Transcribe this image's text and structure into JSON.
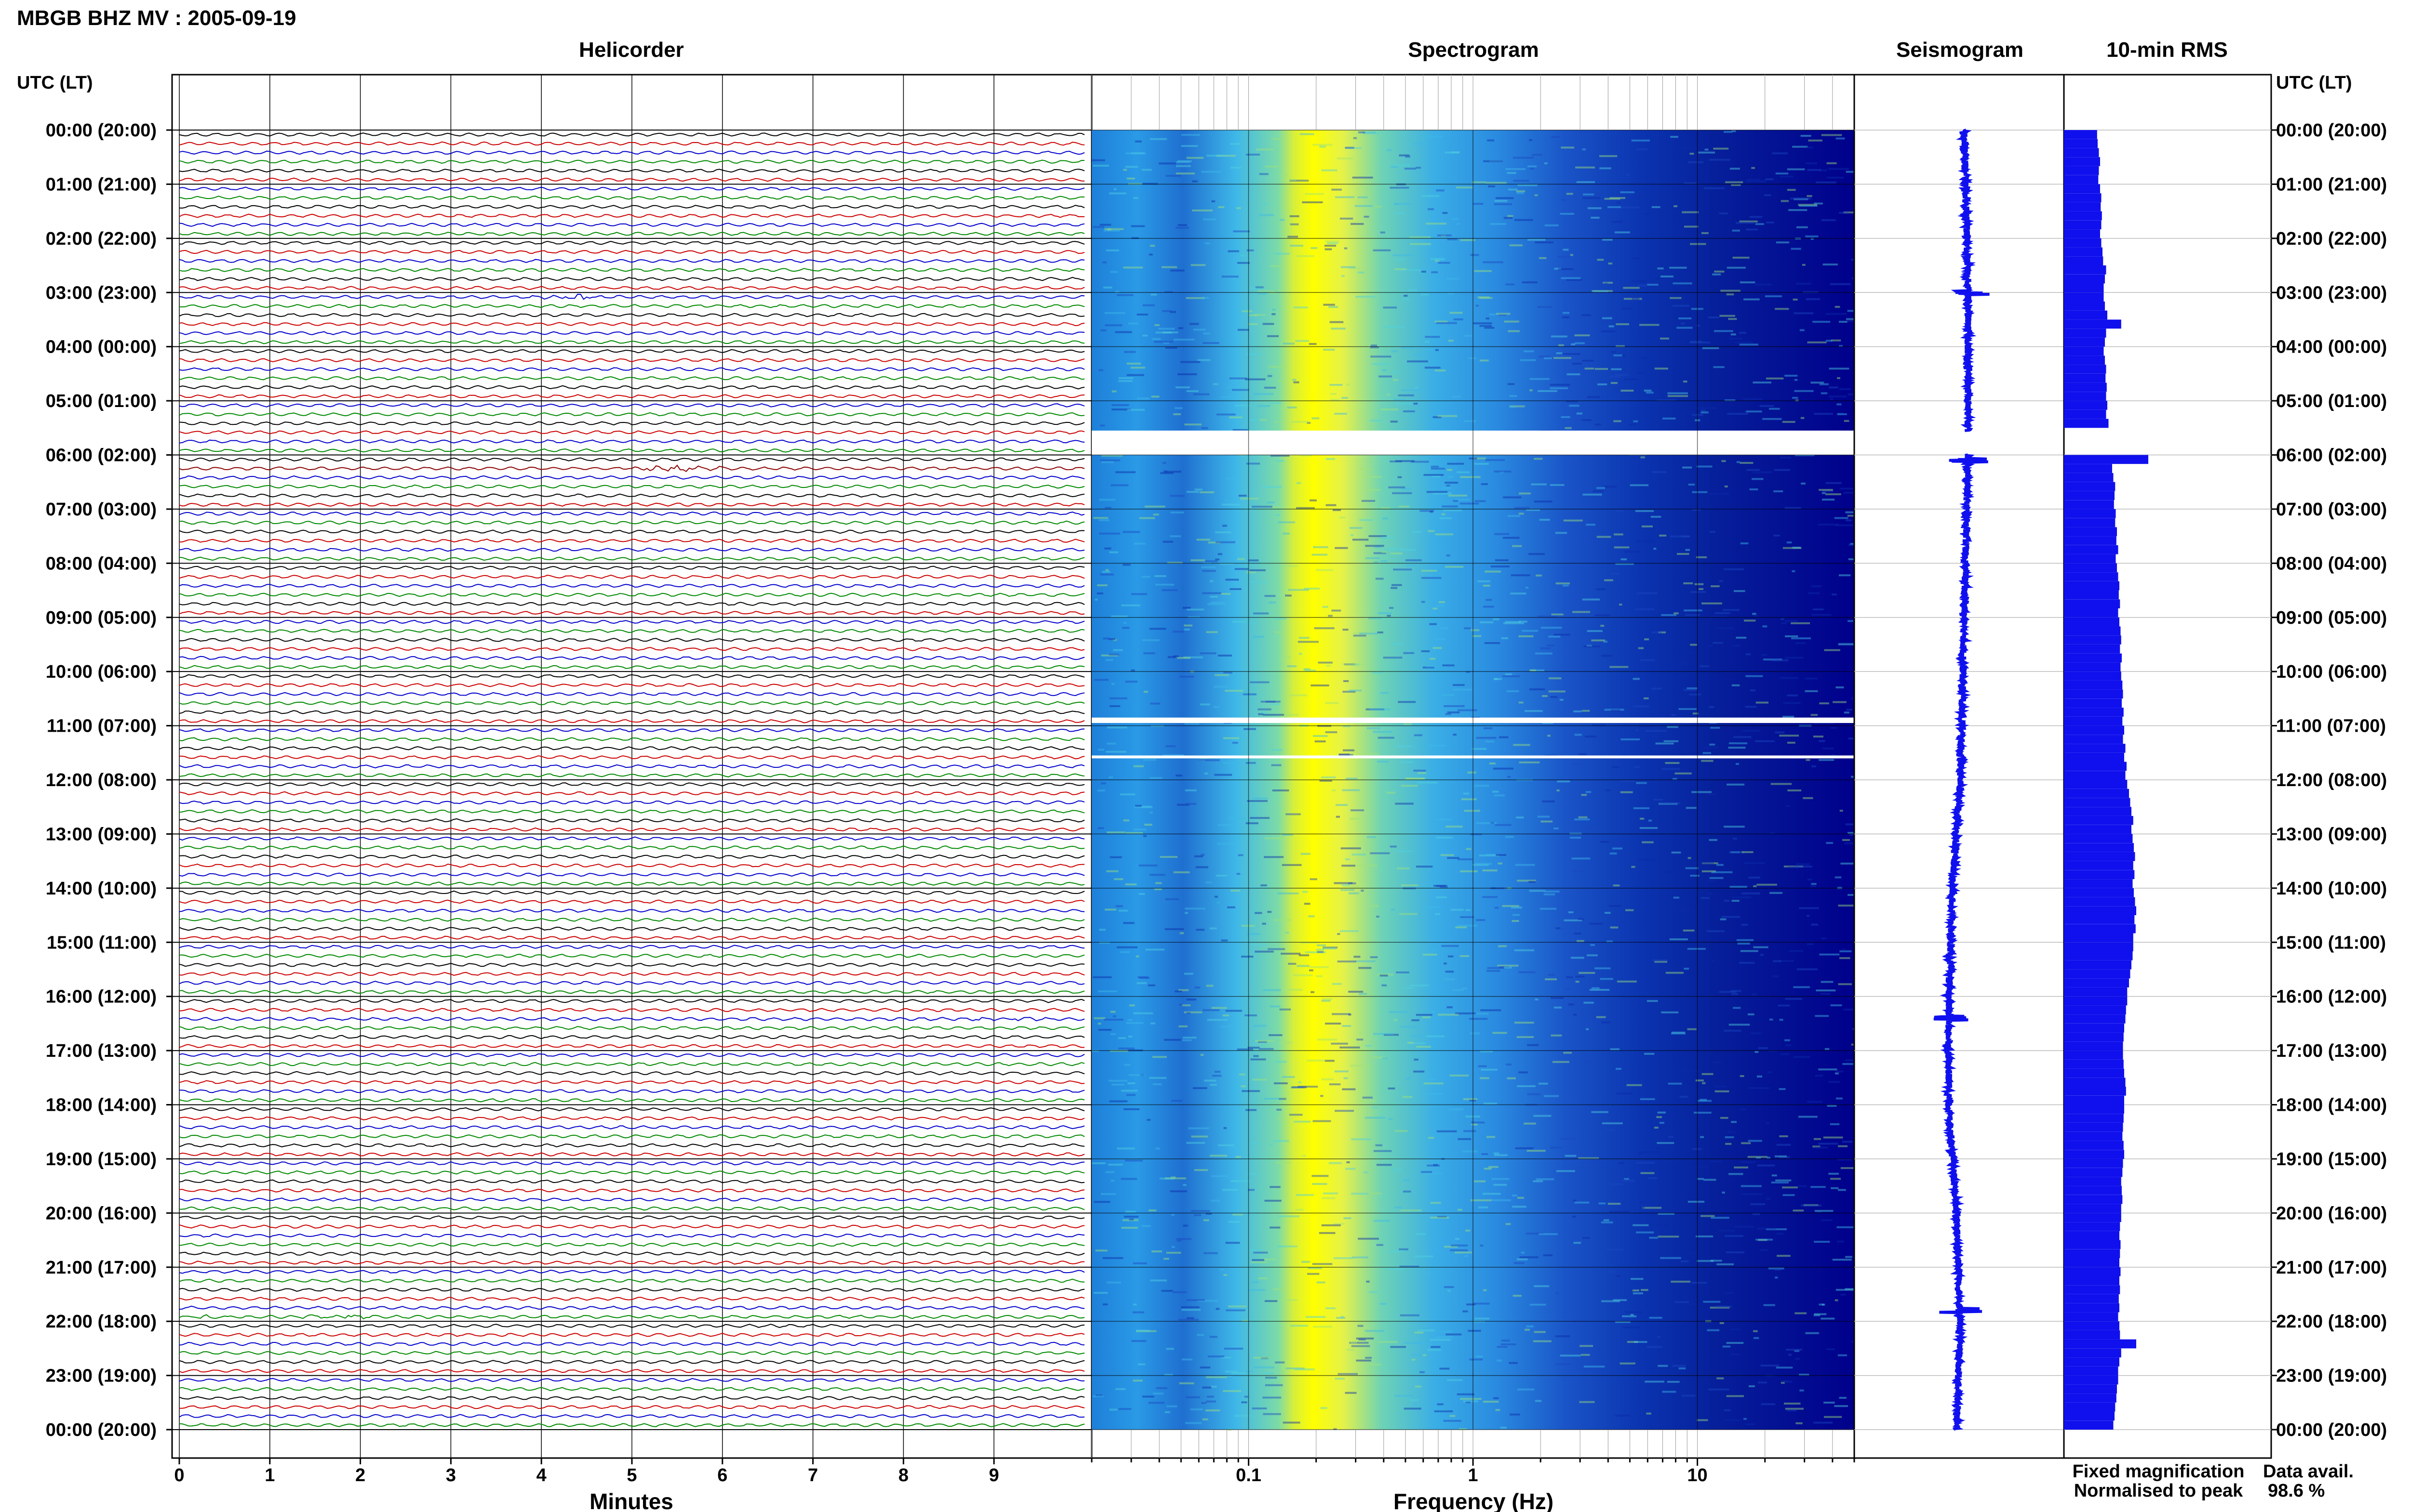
{
  "header": {
    "title": "MBGB BHZ MV : 2005-09-19"
  },
  "panels": {
    "helicorder": "Helicorder",
    "spectrogram": "Spectrogram",
    "seismogram": "Seismogram",
    "rms": "10-min RMS"
  },
  "axis": {
    "time_header_left": "UTC (LT)",
    "time_header_right": "UTC (LT)",
    "minutes_label": "Minutes",
    "frequency_label": "Frequency (Hz)"
  },
  "legend": {
    "fixed": "Fixed magnification",
    "normalised": "Normalised to peak",
    "fixed_color": "#1010ee",
    "normalised_color": "#ee1010"
  },
  "data_availability": {
    "label": "Data avail.",
    "value": "98.6 %"
  },
  "colors": {
    "trace_cycle": [
      "#000000",
      "#cc0000",
      "#0000cc",
      "#008800"
    ],
    "spectrogram_low": "#00008b",
    "spectrogram_high": "#ffff00",
    "rms_bar": "#1010ee"
  },
  "chart_data": [
    {
      "type": "line",
      "title": "Helicorder",
      "xlabel": "Minutes",
      "x_ticks": [
        "0",
        "1",
        "2",
        "3",
        "4",
        "5",
        "6",
        "7",
        "8",
        "9"
      ],
      "xlim": [
        0,
        10
      ],
      "y_ticks": [
        "00:00 (20:00)",
        "01:00 (21:00)",
        "02:00 (22:00)",
        "03:00 (23:00)",
        "04:00 (00:00)",
        "05:00 (01:00)",
        "06:00 (02:00)",
        "07:00 (03:00)",
        "08:00 (04:00)",
        "09:00 (05:00)",
        "10:00 (06:00)",
        "11:00 (07:00)",
        "12:00 (08:00)",
        "13:00 (09:00)",
        "14:00 (10:00)",
        "15:00 (11:00)",
        "16:00 (12:00)",
        "17:00 (13:00)",
        "18:00 (14:00)",
        "19:00 (15:00)",
        "20:00 (16:00)",
        "21:00 (17:00)",
        "22:00 (18:00)",
        "23:00 (19:00)",
        "00:00 (20:00)"
      ],
      "traces_per_hour": 6,
      "events": [
        {
          "hour": 0.5,
          "minute": 2.4,
          "color": "#008800",
          "amp": 0.3
        },
        {
          "hour": 2.5,
          "minute": 7.6,
          "color": "#008800",
          "amp": 0.4
        },
        {
          "hour": 3.0,
          "minute": 4.3,
          "color": "#0000cc",
          "amp": 1.2
        },
        {
          "hour": 6.1,
          "minute": 5.5,
          "color": "#8b0000",
          "amp": 1.8
        },
        {
          "hour": 16.3,
          "minute": 9.2,
          "color": "#0000cc",
          "amp": 0.6
        },
        {
          "hour": 21.8,
          "minute": 0.2,
          "color": "#008800",
          "amp": 0.6
        },
        {
          "hour": 21.8,
          "minute": 1.8,
          "color": "#008800",
          "amp": 0.9
        }
      ]
    },
    {
      "type": "heatmap",
      "title": "Spectrogram",
      "xlabel": "Frequency (Hz)",
      "x_scale": "log",
      "xlim": [
        0.02,
        50
      ],
      "x_ticks": [
        "0.1",
        "1",
        "10"
      ],
      "gaps": [
        {
          "start": 5.55,
          "end": 6.0
        },
        {
          "start": 10.85,
          "end": 10.95
        },
        {
          "start": 11.55,
          "end": 11.6
        }
      ],
      "peak_band_hz": [
        0.18,
        0.3
      ]
    },
    {
      "type": "line",
      "title": "Seismogram",
      "trend_hours": [
        0,
        3,
        6,
        9,
        12,
        14,
        16,
        18,
        20,
        22,
        24
      ],
      "trend_offset": [
        0.0,
        0.05,
        0.05,
        0.0,
        -0.05,
        -0.15,
        -0.2,
        -0.2,
        -0.1,
        -0.05,
        -0.1
      ],
      "spikes_hours": [
        3.0,
        6.1,
        16.4,
        21.8
      ]
    },
    {
      "type": "bar",
      "title": "10-min RMS",
      "bins_per_hour": 6,
      "values": [
        0.55,
        0.56,
        0.58,
        0.6,
        0.58,
        0.57,
        0.6,
        0.62,
        0.61,
        0.63,
        0.62,
        0.6,
        0.62,
        0.64,
        0.65,
        0.7,
        0.68,
        0.66,
        0.66,
        0.68,
        0.72,
        0.95,
        0.7,
        0.68,
        0.66,
        0.68,
        0.7,
        0.69,
        0.71,
        0.7,
        0.72,
        0.7,
        0.74,
        0.72,
        0.78,
        0.76,
        1.4,
        0.8,
        0.82,
        0.85,
        0.84,
        0.83,
        0.86,
        0.85,
        0.88,
        0.87,
        0.9,
        0.86,
        0.88,
        0.9,
        0.92,
        0.91,
        0.93,
        0.9,
        0.92,
        0.94,
        0.95,
        0.93,
        0.96,
        0.94,
        0.95,
        0.97,
        0.98,
        0.96,
        0.99,
        0.97,
        1.0,
        0.98,
        1.02,
        1.0,
        1.04,
        1.02,
        1.05,
        1.08,
        1.1,
        1.12,
        1.15,
        1.12,
        1.14,
        1.16,
        1.18,
        1.15,
        1.17,
        1.14,
        1.16,
        1.18,
        1.2,
        1.17,
        1.19,
        1.15,
        1.15,
        1.14,
        1.12,
        1.1,
        1.08,
        1.05,
        1.05,
        1.03,
        1.02,
        1.0,
        0.99,
        0.98,
        0.98,
        0.99,
        1.0,
        1.02,
        1.03,
        1.0,
        1.0,
        0.99,
        0.98,
        0.97,
        0.99,
        1.0,
        0.98,
        0.97,
        0.95,
        0.96,
        0.97,
        0.95,
        0.95,
        0.93,
        0.92,
        0.94,
        0.93,
        0.92,
        0.94,
        0.92,
        0.93,
        0.91,
        0.92,
        0.9,
        0.92,
        0.93,
        1.2,
        0.95,
        0.92,
        0.9,
        0.9,
        0.88,
        0.87,
        0.85,
        0.84,
        0.82
      ]
    }
  ]
}
